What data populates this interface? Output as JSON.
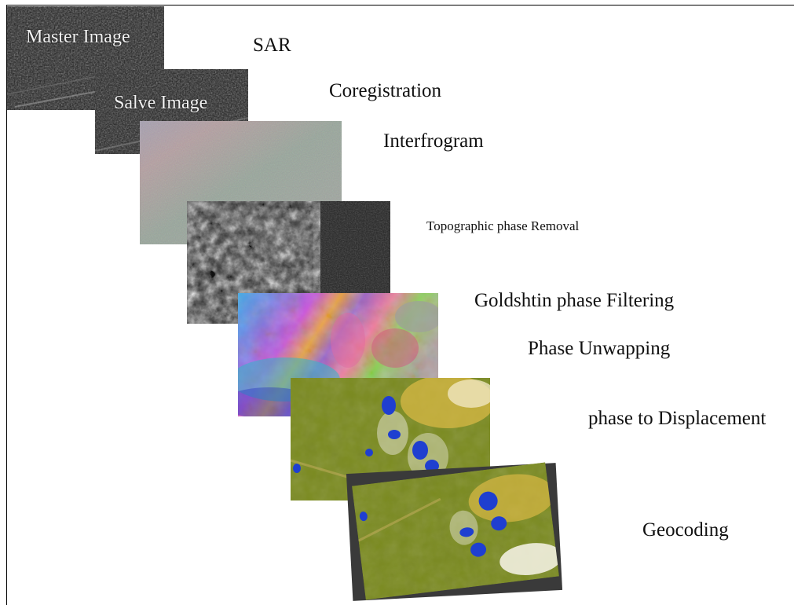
{
  "panels": {
    "master_label": "Master Image",
    "slave_label": "Salve Image"
  },
  "steps": [
    {
      "label": "SAR"
    },
    {
      "label": "Coregistration"
    },
    {
      "label": "Interfrogram"
    },
    {
      "label": "Topographic phase Removal"
    },
    {
      "label": "Goldshtin phase Filtering"
    },
    {
      "label": "Phase Unwapping"
    },
    {
      "label": "phase to Displacement"
    },
    {
      "label": "Geocoding"
    }
  ],
  "colors": {
    "background": "#ffffff",
    "frame": "#000000",
    "label_text": "#111111",
    "panel_text": "#f2f2f2",
    "deformation_olive": "#7a8a1e",
    "deformation_blue": "#1f3fd0"
  }
}
